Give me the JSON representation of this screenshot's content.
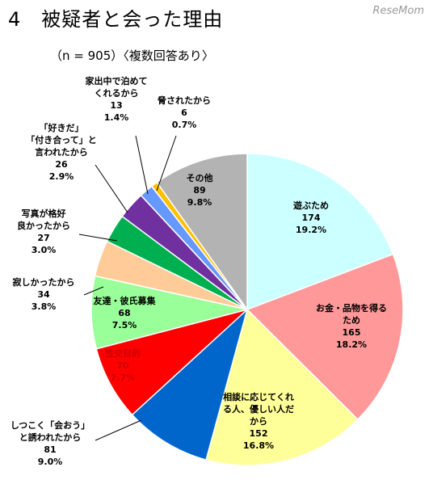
{
  "header": {
    "title": "4　被疑者と会った理由",
    "subtitle": "（n = 905）〈複数回答あり〉",
    "watermark": "ReseMom"
  },
  "chart_data": {
    "type": "pie",
    "title": "4　被疑者と会った理由",
    "subtitle": "（n = 905）〈複数回答あり〉",
    "slices": [
      {
        "label": [
          "遊ぶため"
        ],
        "count": 174,
        "percent": "19.2%",
        "color": "#ccffff"
      },
      {
        "label": [
          "お金・品物を得る",
          "ため"
        ],
        "count": 165,
        "percent": "18.2%",
        "color": "#ff9999"
      },
      {
        "label": [
          "相談に応じてくれ",
          "る人、優しい人だ",
          "から"
        ],
        "count": 152,
        "percent": "16.8%",
        "color": "#ffff99"
      },
      {
        "label": [
          "しつこく「会おう」",
          "と誘われたから"
        ],
        "count": 81,
        "percent": "9.0%",
        "color": "#0066cc"
      },
      {
        "label": [
          "性交目的"
        ],
        "count": 70,
        "percent": "7.7%",
        "color": "#ff0000"
      },
      {
        "label": [
          "友達・彼氏募集"
        ],
        "count": 68,
        "percent": "7.5%",
        "color": "#99ff99"
      },
      {
        "label": [
          "寂しかったから"
        ],
        "count": 34,
        "percent": "3.8%",
        "color": "#ffcc99"
      },
      {
        "label": [
          "写真が格好",
          "良かったから"
        ],
        "count": 27,
        "percent": "3.0%",
        "color": "#00b050"
      },
      {
        "label": [
          "「好きだ」",
          "「付き合って」と",
          "言われたから"
        ],
        "count": 26,
        "percent": "2.9%",
        "color": "#7030a0"
      },
      {
        "label": [
          "家出中で泊めて",
          "くれるから"
        ],
        "count": 13,
        "percent": "1.4%",
        "color": "#6699ff"
      },
      {
        "label": [
          "脅されたから"
        ],
        "count": 6,
        "percent": "0.7%",
        "color": "#ffc000"
      },
      {
        "label": [
          "その他"
        ],
        "count": 89,
        "percent": "9.8%",
        "color": "#b3b3b3"
      }
    ]
  }
}
